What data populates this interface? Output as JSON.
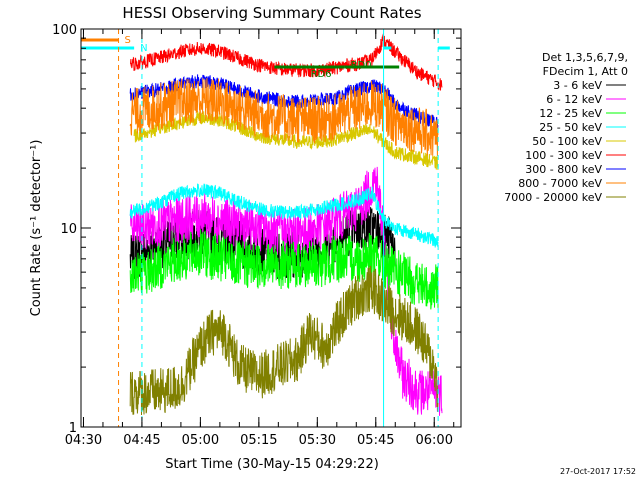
{
  "chart_data": {
    "type": "line",
    "title": "HESSI Observing Summary Count Rates",
    "xlabel": "Start Time (30-May-15 04:29:22)",
    "ylabel": "Count Rate (s⁻¹ detector⁻¹)",
    "yscale": "log",
    "ylim": [
      1,
      100
    ],
    "ytick_labels": [
      "1",
      "10",
      "100"
    ],
    "xlim_minutes": [
      0,
      97.5
    ],
    "x_ticks": [
      "04:30",
      "04:45",
      "05:00",
      "05:15",
      "05:30",
      "05:45",
      "06:00"
    ],
    "timestamp": "27-Oct-2017 17:52",
    "legend": {
      "placement": "right",
      "header": [
        "Det 1,3,5,6,7,9,",
        "FDecim 1, Att 0"
      ],
      "entries": [
        {
          "label": "3 - 6 keV",
          "color": "#000000"
        },
        {
          "label": "6 - 12 keV",
          "color": "#ff00ff"
        },
        {
          "label": "12 - 25 keV",
          "color": "#00ff00"
        },
        {
          "label": "25 - 50 keV",
          "color": "#00ffff"
        },
        {
          "label": "50 - 100 keV",
          "color": "#d8c800"
        },
        {
          "label": "100 - 300 keV",
          "color": "#ff0000"
        },
        {
          "label": "300 - 800 keV",
          "color": "#0000ff"
        },
        {
          "label": "800 - 7000 keV",
          "color": "#ff8000"
        },
        {
          "label": "7000 - 20000 keV",
          "color": "#808000"
        }
      ]
    },
    "flag_bars": [
      {
        "label": "S",
        "color": "#ff8000",
        "start": "04:29",
        "end": "04:39"
      },
      {
        "label": "N",
        "color": "#00ffff",
        "start": "04:29",
        "end": "04:43"
      },
      {
        "label": "N",
        "color": "#00ffff",
        "start": "05:47",
        "end": "05:49"
      },
      {
        "label": "N",
        "color": "#00ffff",
        "start": "06:01",
        "end": "06:04"
      },
      {
        "label": "RD0",
        "color": "#008000",
        "start": "05:37",
        "end": "05:51"
      },
      {
        "label": "RD6",
        "color": "#008000",
        "start": "05:19",
        "end": "05:37"
      }
    ],
    "vertical_markers": [
      {
        "time": "04:39",
        "color": "#ff8000",
        "style": "dashed"
      },
      {
        "time": "04:45",
        "color": "#00ffff",
        "style": "dashed"
      },
      {
        "time": "05:47",
        "color": "#00ffff",
        "style": "solid"
      },
      {
        "time": "06:01",
        "color": "#00ffff",
        "style": "dashed"
      }
    ],
    "series": [
      {
        "name": "3 - 6 keV",
        "color": "#000000",
        "x": [
          "04:42",
          "04:45",
          "04:48",
          "04:52",
          "04:56",
          "05:00",
          "05:04",
          "05:08",
          "05:12",
          "05:16",
          "05:20",
          "05:24",
          "05:28",
          "05:32",
          "05:36",
          "05:40",
          "05:44",
          "05:46",
          "05:48",
          "05:50"
        ],
        "y": [
          7,
          7.5,
          8,
          8.5,
          9,
          9.5,
          9,
          8.5,
          8,
          7.5,
          7.3,
          7.3,
          7.5,
          8,
          9,
          10,
          10,
          9.5,
          9,
          8
        ]
      },
      {
        "name": "6 - 12 keV",
        "color": "#ff00ff",
        "x": [
          "04:42",
          "04:45",
          "04:50",
          "04:55",
          "05:00",
          "05:05",
          "05:10",
          "05:15",
          "05:20",
          "05:25",
          "05:30",
          "05:35",
          "05:38",
          "05:41",
          "05:43",
          "05:45",
          "05:47",
          "05:48",
          "05:49",
          "05:52",
          "05:56",
          "06:00",
          "06:02"
        ],
        "y": [
          10,
          10,
          10.5,
          11,
          11.5,
          11,
          10.5,
          10,
          9.5,
          9.5,
          10,
          11,
          12,
          13,
          15,
          18,
          10,
          6,
          3,
          1.8,
          1.5,
          1.5,
          1.5
        ]
      },
      {
        "name": "12 - 25 keV",
        "color": "#00ff00",
        "x": [
          "04:42",
          "04:46",
          "04:50",
          "04:55",
          "05:00",
          "05:05",
          "05:10",
          "05:15",
          "05:20",
          "05:25",
          "05:30",
          "05:35",
          "05:38",
          "05:41",
          "05:44",
          "05:47",
          "05:50",
          "05:54",
          "05:58",
          "06:01"
        ],
        "y": [
          6,
          6,
          6.5,
          7,
          7.5,
          7,
          6.5,
          6.5,
          6.5,
          6.5,
          6.5,
          7,
          7,
          7,
          7.5,
          6.5,
          6,
          5.5,
          5,
          5
        ]
      },
      {
        "name": "25 - 50 keV",
        "color": "#00ffff",
        "x": [
          "04:42",
          "04:45",
          "04:50",
          "04:55",
          "05:00",
          "05:05",
          "05:10",
          "05:15",
          "05:20",
          "05:25",
          "05:30",
          "05:35",
          "05:38",
          "05:41",
          "05:44",
          "05:47",
          "05:50",
          "05:54",
          "05:58",
          "06:01"
        ],
        "y": [
          12,
          12.5,
          13.5,
          15,
          15.5,
          15,
          13.5,
          12.5,
          12,
          12,
          12.5,
          13,
          13.5,
          14,
          15,
          11,
          10,
          9.5,
          9,
          8.5
        ]
      },
      {
        "name": "50 - 100 keV",
        "color": "#d8c800",
        "x": [
          "04:43",
          "04:46",
          "04:50",
          "04:55",
          "05:00",
          "05:05",
          "05:10",
          "05:15",
          "05:20",
          "05:25",
          "05:30",
          "05:35",
          "05:37",
          "05:40",
          "05:44",
          "05:47",
          "05:50",
          "05:54",
          "05:58",
          "06:01"
        ],
        "y": [
          29,
          30,
          32,
          34,
          36,
          35,
          32,
          29,
          28,
          27,
          27,
          28,
          29,
          30,
          31,
          27,
          24,
          23,
          22,
          21
        ]
      },
      {
        "name": "100 - 300 keV",
        "color": "#ff0000",
        "x": [
          "04:42",
          "04:45",
          "04:50",
          "04:55",
          "05:00",
          "05:05",
          "05:10",
          "05:15",
          "05:20",
          "05:25",
          "05:30",
          "05:35",
          "05:38",
          "05:41",
          "05:44",
          "05:47",
          "05:49",
          "05:52",
          "05:56",
          "06:00",
          "06:02"
        ],
        "y": [
          66,
          68,
          72,
          77,
          80,
          77,
          71,
          66,
          63,
          62,
          62,
          64,
          66,
          67,
          70,
          88,
          80,
          70,
          60,
          55,
          52
        ]
      },
      {
        "name": "300 - 800 keV",
        "color": "#0000ff",
        "x": [
          "04:42",
          "04:45",
          "04:50",
          "04:55",
          "05:00",
          "05:05",
          "05:10",
          "05:15",
          "05:20",
          "05:25",
          "05:30",
          "05:35",
          "05:38",
          "05:41",
          "05:44",
          "05:47",
          "05:50",
          "05:54",
          "05:58",
          "06:01"
        ],
        "y": [
          47,
          48,
          50,
          53,
          55,
          53,
          49,
          46,
          44,
          43,
          44,
          45,
          48,
          50,
          52,
          50,
          42,
          38,
          35,
          34
        ]
      },
      {
        "name": "800 - 7000 keV",
        "color": "#ff8000",
        "x": [
          "04:42",
          "04:45",
          "04:50",
          "04:55",
          "05:00",
          "05:05",
          "05:10",
          "05:15",
          "05:20",
          "05:25",
          "05:30",
          "05:35",
          "05:38",
          "05:41",
          "05:44",
          "05:47",
          "05:50",
          "05:54",
          "05:58",
          "06:01"
        ],
        "y": [
          38,
          39,
          41,
          43,
          44,
          43,
          40,
          37,
          36,
          35,
          35,
          36,
          39,
          40,
          42,
          40,
          34,
          32,
          30,
          28
        ]
      },
      {
        "name": "7000 - 20000 keV",
        "color": "#808000",
        "x": [
          "04:42",
          "04:46",
          "04:50",
          "04:55",
          "05:00",
          "05:03",
          "05:06",
          "05:10",
          "05:15",
          "05:20",
          "05:25",
          "05:28",
          "05:32",
          "05:36",
          "05:40",
          "05:44",
          "05:48",
          "05:52",
          "05:56",
          "06:00",
          "06:01"
        ],
        "y": [
          1.5,
          1.5,
          1.5,
          1.6,
          2.5,
          3,
          3,
          2,
          1.8,
          2,
          2.2,
          3,
          2.5,
          3.5,
          4.5,
          5,
          4,
          3.5,
          3,
          2,
          1.5
        ]
      }
    ]
  }
}
